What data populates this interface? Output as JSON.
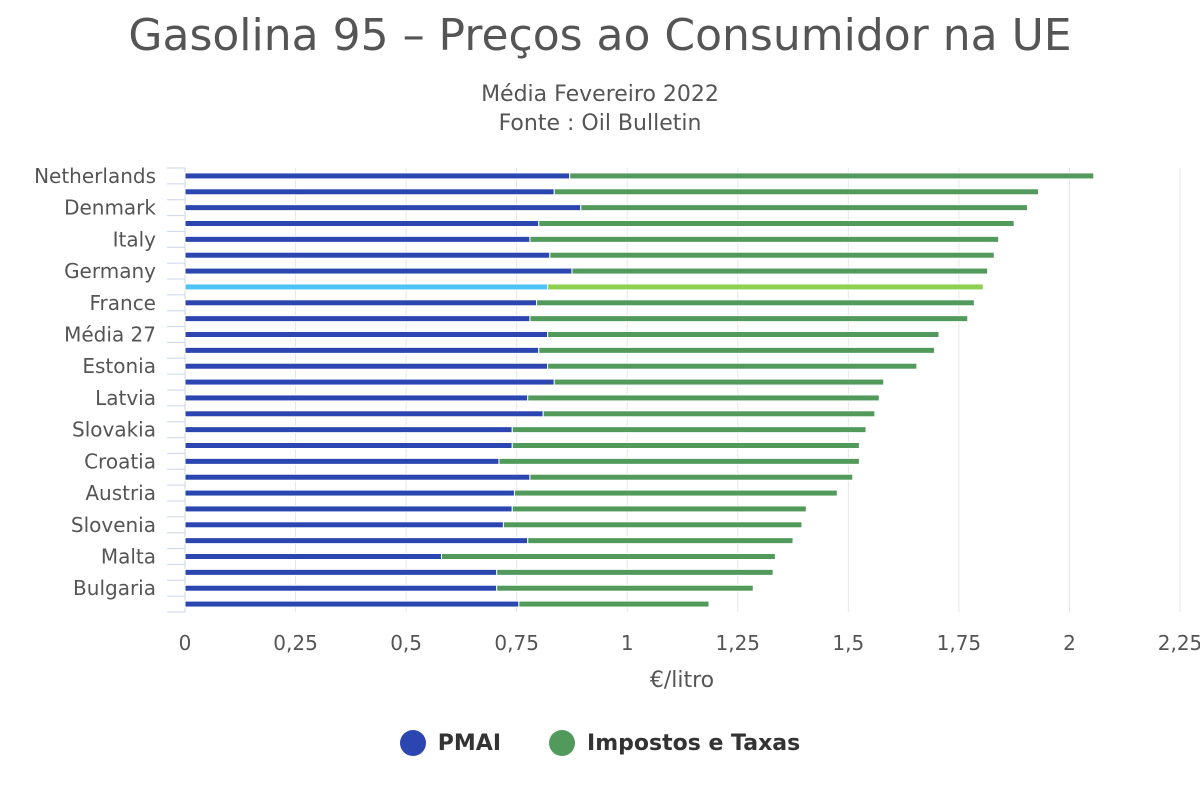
{
  "chart_data": {
    "type": "bar",
    "orientation": "horizontal",
    "stacked": true,
    "title": "Gasolina 95 – Preços ao Consumidor na UE",
    "subtitle_lines": [
      "Média Fevereiro 2022",
      "Fonte : Oil Bulletin"
    ],
    "xlabel": "€/litro",
    "ylabel": "",
    "xlim": [
      0,
      2.25
    ],
    "x_ticks": [
      0,
      0.25,
      0.5,
      0.75,
      1,
      1.25,
      1.5,
      1.75,
      2,
      2.25
    ],
    "x_tick_labels": [
      "0",
      "0,25",
      "0,5",
      "0,75",
      "1",
      "1,25",
      "1,5",
      "1,75",
      "2",
      "2,25"
    ],
    "grid": true,
    "categories": [
      "Netherlands",
      "",
      "Denmark",
      "",
      "Italy",
      "",
      "Germany",
      "",
      "France",
      "",
      "Média 27",
      "",
      "Estonia",
      "",
      "Latvia",
      "",
      "Slovakia",
      "",
      "Croatia",
      "",
      "Austria",
      "",
      "Slovenia",
      "",
      "Malta",
      "",
      "Bulgaria",
      ""
    ],
    "highlight_index": 7,
    "highlight_colors": [
      "#4fc3f7",
      "#8fd14f"
    ],
    "series": [
      {
        "name": "PMAI",
        "color": "#2b46b0",
        "values": [
          0.87,
          0.835,
          0.895,
          0.8,
          0.78,
          0.825,
          0.875,
          0.82,
          0.795,
          0.78,
          0.82,
          0.8,
          0.82,
          0.835,
          0.775,
          0.81,
          0.74,
          0.74,
          0.71,
          0.78,
          0.745,
          0.74,
          0.72,
          0.775,
          0.58,
          0.705,
          0.705,
          0.755
        ]
      },
      {
        "name": "Impostos e Taxas",
        "color": "#529a5c",
        "values": [
          1.185,
          1.095,
          1.01,
          1.075,
          1.06,
          1.005,
          0.94,
          0.985,
          0.99,
          0.99,
          0.885,
          0.895,
          0.835,
          0.745,
          0.795,
          0.75,
          0.8,
          0.785,
          0.815,
          0.73,
          0.73,
          0.665,
          0.675,
          0.6,
          0.755,
          0.625,
          0.58,
          0.43
        ]
      }
    ]
  }
}
